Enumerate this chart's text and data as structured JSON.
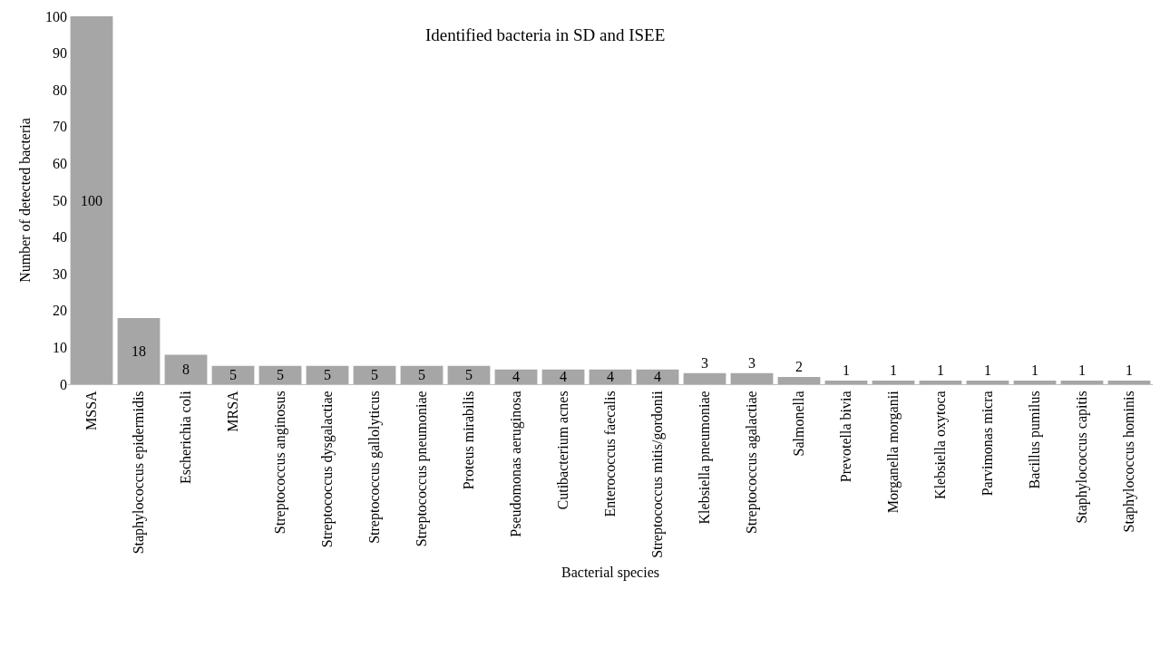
{
  "chart_data": {
    "type": "bar",
    "title": "Identified bacteria in SD and ISEE",
    "xlabel": "Bacterial species",
    "ylabel": "Number of detected bacteria",
    "categories": [
      "MSSA",
      "Staphylococcus epidermidis",
      "Escherichia coli",
      "MRSA",
      "Streptococcus anginosus",
      "Streptococcus dysgalactiae",
      "Streptococcus gallolyticus",
      "Streptococcus pneumoniae",
      "Proteus mirabilis",
      "Pseudomonas aeruginosa",
      "Cutibacterium acnes",
      "Enterococcus faecalis",
      "Streptococcus mitis/gordonii",
      "Klebsiella pneumoniae",
      "Streptococcus agalactiae",
      "Salmonella",
      "Prevotella bivia",
      "Morganella morganii",
      "Klebsiella oxytoca",
      "Parvimonas micra",
      "Bacillus pumilus",
      "Staphylococcus capitis",
      "Staphylococcus hominis"
    ],
    "values": [
      100,
      18,
      8,
      5,
      5,
      5,
      5,
      5,
      5,
      4,
      4,
      4,
      4,
      3,
      3,
      2,
      1,
      1,
      1,
      1,
      1,
      1,
      1
    ],
    "color": "#a6a6a6",
    "ylim": [
      0,
      100
    ],
    "yticks": [
      0,
      10,
      20,
      30,
      40,
      50,
      60,
      70,
      80,
      90,
      100
    ],
    "grid": false,
    "data_labels": true
  }
}
